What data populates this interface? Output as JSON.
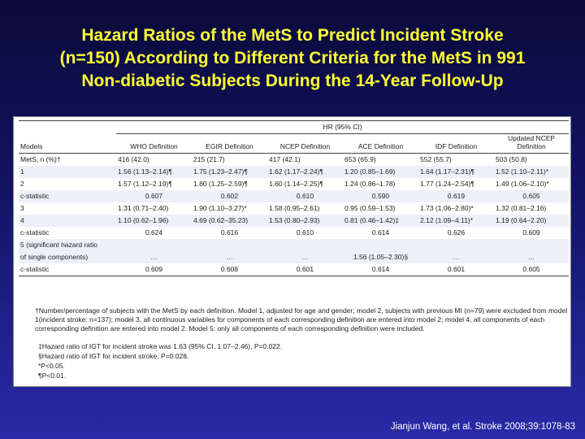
{
  "title": {
    "line1": "Hazard Ratios of the MetS to Predict Incident Stroke",
    "line2": "(n=150) According to Different Criteria for the MetS in 991",
    "line3": "Non-diabetic Subjects During the 14-Year Follow-Up"
  },
  "table": {
    "group_header": "HR (95% CI)",
    "columns": [
      "Models",
      "WHO Definition",
      "EGIR Definition",
      "NCEP Definition",
      "ACE Definition",
      "IDF Definition",
      "Updated NCEP Definition"
    ],
    "rows": [
      {
        "label": "MetS, n (%)†",
        "cells": [
          "416 (42.0)",
          "215 (21.7)",
          "417 (42.1)",
          "653 (65.9)",
          "552 (55.7)",
          "503 (50.8)"
        ],
        "shade": false,
        "center": false
      },
      {
        "label": "1",
        "cells": [
          "1.56 (1.13–2.14)¶",
          "1.75 (1.23–2.47)¶",
          "1.62 (1.17–2.24)¶",
          "1.20 (0.85–1.69)",
          "1.64 (1.17–2.31)¶",
          "1.52 (1.10–2.11)*"
        ],
        "shade": true,
        "center": false
      },
      {
        "label": "2",
        "cells": [
          "1.57 (1.12–2.19)¶",
          "1.80 (1.25–2.59)¶",
          "1.60 (1.14–2.25)¶",
          "1.24 (0.86–1.78)",
          "1.77 (1.24–2.54)¶",
          "1.49 (1.06–2.10)*"
        ],
        "shade": false,
        "center": false
      },
      {
        "label": "c-statistic",
        "cells": [
          "0.607",
          "0.602",
          "0.610",
          "0.590",
          "0.619",
          "0.605"
        ],
        "shade": true,
        "center": true
      },
      {
        "label": "3",
        "cells": [
          "1.31 (0.71–2.40)",
          "1.90 (1.10–3.27)*",
          "1.58 (0.95–2.61)",
          "0.95 (0.59–1.53)",
          "1.73 (1.06–2.80)*",
          "1.32 (0.81–2.16)"
        ],
        "shade": false,
        "center": false
      },
      {
        "label": "4",
        "cells": [
          "1.10 (0.62–1.96)",
          "4.69 (0.62–35.23)",
          "1.53 (0.80–2.93)",
          "0.81 (0.46–1.42)‡",
          "2.12 (1.09–4.11)*",
          "1.19 (0.64–2.20)"
        ],
        "shade": true,
        "center": false
      },
      {
        "label": "c-statistic",
        "cells": [
          "0.624",
          "0.616",
          "0.610",
          "0.614",
          "0.626",
          "0.609"
        ],
        "shade": false,
        "center": true
      },
      {
        "label": "5 (significant hazard ratio",
        "cells": [
          "",
          "",
          "",
          "",
          "",
          ""
        ],
        "shade": true,
        "center": false
      },
      {
        "label": "of single components)",
        "cells": [
          "…",
          "…",
          "…",
          "1.56 (1.05–2.30)§",
          "…",
          "…"
        ],
        "shade": true,
        "center": true
      },
      {
        "label": "c-statistic",
        "cells": [
          "0.609",
          "0.608",
          "0.601",
          "0.614",
          "0.601",
          "0.605"
        ],
        "shade": false,
        "center": true
      }
    ]
  },
  "footnotes": {
    "main": "†Number/percentage of subjects with the MetS by each definition. Model 1, adjusted for age and gender; model 2, subjects with previous MI (n=79) were excluded from model 1(incident stroke: n=137); model 3, all continuous variables for components of each corresponding definition are entered into model 2; model 4, all components of each corresponding definition are entered into model 2. Model 5: only all components of each corresponding definition were included.",
    "double_dagger": "‡Hazard ratio of IGT for incident stroke was 1.63 (95% CI, 1.07–2.46), P=0.022.",
    "section": "§Hazard ratio of IGT for incident stroke, P=0.028.",
    "star": "*P<0.05.",
    "pilcrow": "¶P<0.01."
  },
  "source": "Jianjun Wang, et al. Stroke 2008;39:1078-83"
}
